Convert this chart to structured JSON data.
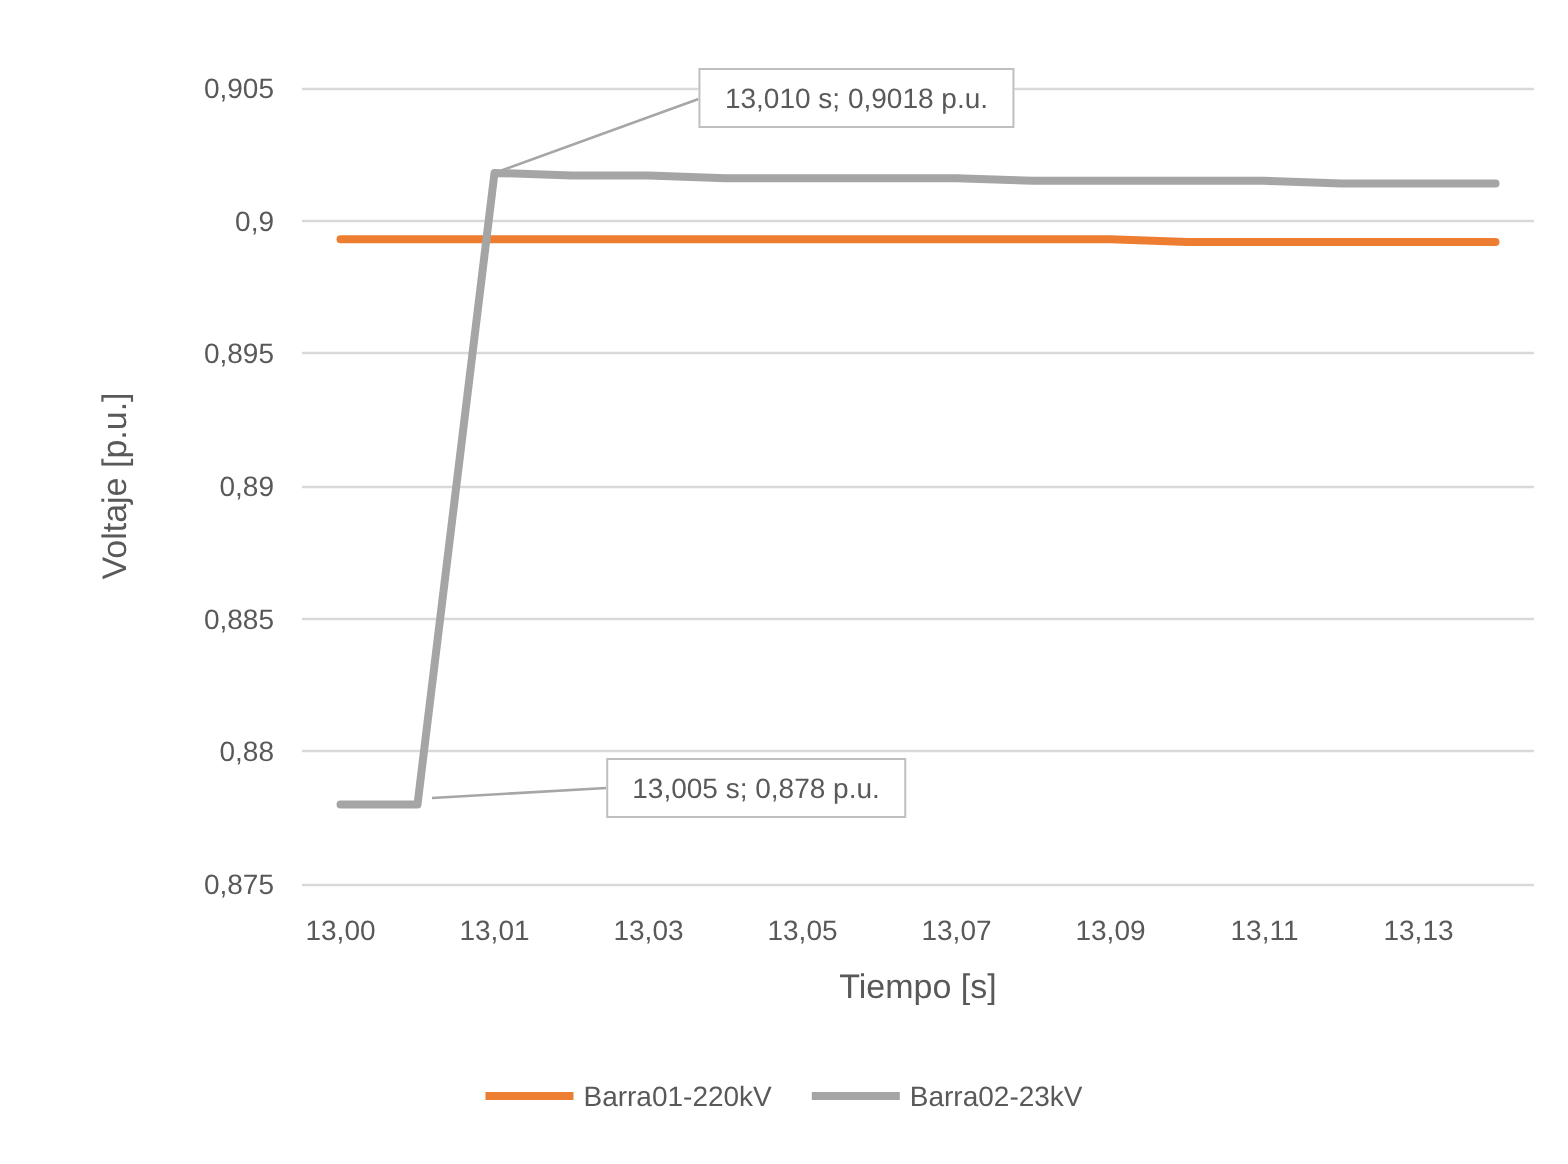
{
  "chart_data": {
    "type": "line",
    "xlabel": "Tiempo [s]",
    "ylabel": "Voltaje [p.u.]",
    "categories": [
      "13,00",
      null,
      "13,01",
      null,
      "13,03",
      null,
      "13,05",
      null,
      "13,07",
      null,
      "13,09",
      null,
      "13,11",
      null,
      "13,13",
      null
    ],
    "series": [
      {
        "name": "Barra01-220kV",
        "color": "#ed7d31",
        "values": [
          0.8993,
          0.8993,
          0.8993,
          0.8993,
          0.8993,
          0.8993,
          0.8993,
          0.8993,
          0.8993,
          0.8993,
          0.8993,
          0.8992,
          0.8992,
          0.8992,
          0.8992,
          0.8992
        ]
      },
      {
        "name": "Barra02-23kV",
        "color": "#a5a5a5",
        "values": [
          0.878,
          0.878,
          0.9018,
          0.9017,
          0.9017,
          0.9016,
          0.9016,
          0.9016,
          0.9016,
          0.9015,
          0.9015,
          0.9015,
          0.9015,
          0.9014,
          0.9014,
          0.9014
        ]
      }
    ],
    "ylim": [
      0.875,
      0.905
    ],
    "yticks": [
      {
        "value": 0.875,
        "label": "0,875"
      },
      {
        "value": 0.88,
        "label": "0,88"
      },
      {
        "value": 0.885,
        "label": "0,885"
      },
      {
        "value": 0.89,
        "label": "0,89"
      },
      {
        "value": 0.895,
        "label": "0,895"
      },
      {
        "value": 0.9,
        "label": "0,9"
      },
      {
        "value": 0.905,
        "label": "0,905"
      }
    ],
    "grid": "y",
    "legend": "bottom",
    "marker": "none",
    "line_style": "solid",
    "annotations": [
      "13,005 s; 0,878 p.u.",
      {
        "text": "13,010 s; 0,9018 p.u.",
        "x": "13,01",
        "y": 0.9018
      }
    ]
  }
}
